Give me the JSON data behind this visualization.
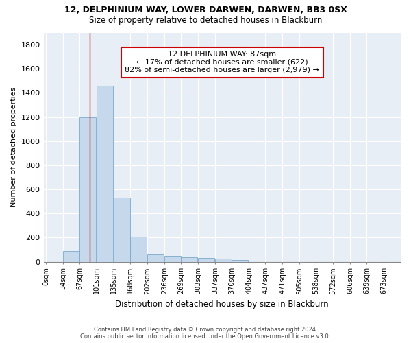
{
  "title": "12, DELPHINIUM WAY, LOWER DARWEN, DARWEN, BB3 0SX",
  "subtitle": "Size of property relative to detached houses in Blackburn",
  "xlabel": "Distribution of detached houses by size in Blackburn",
  "ylabel": "Number of detached properties",
  "bar_labels": [
    "0sqm",
    "34sqm",
    "67sqm",
    "101sqm",
    "135sqm",
    "168sqm",
    "202sqm",
    "236sqm",
    "269sqm",
    "303sqm",
    "337sqm",
    "370sqm",
    "404sqm",
    "437sqm",
    "471sqm",
    "505sqm",
    "538sqm",
    "572sqm",
    "606sqm",
    "639sqm",
    "673sqm"
  ],
  "bar_values": [
    0,
    90,
    1200,
    1460,
    530,
    205,
    65,
    48,
    38,
    30,
    25,
    12,
    0,
    0,
    0,
    0,
    0,
    0,
    0,
    0,
    0
  ],
  "bar_color": "#c6d9ec",
  "bar_edge_color": "#7aaac8",
  "background_color": "#e8eef6",
  "property_line_x": 87,
  "annotation_line1": "12 DELPHINIUM WAY: 87sqm",
  "annotation_line2": "← 17% of detached houses are smaller (622)",
  "annotation_line3": "82% of semi-detached houses are larger (2,979) →",
  "annotation_box_color": "#cc0000",
  "ylim": [
    0,
    1900
  ],
  "yticks": [
    0,
    200,
    400,
    600,
    800,
    1000,
    1200,
    1400,
    1600,
    1800
  ],
  "footer_line1": "Contains HM Land Registry data © Crown copyright and database right 2024.",
  "footer_line2": "Contains public sector information licensed under the Open Government Licence v3.0.",
  "bin_starts": [
    0,
    34,
    67,
    101,
    135,
    168,
    202,
    236,
    269,
    303,
    337,
    370,
    404,
    437,
    471,
    505,
    538,
    572,
    606,
    639,
    673
  ],
  "bin_width": 33
}
